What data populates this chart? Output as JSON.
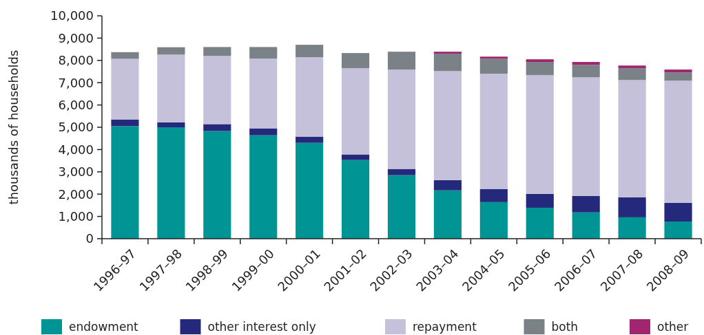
{
  "chart_data": {
    "type": "bar",
    "stacked": true,
    "ylabel": "thousands of households",
    "categories": [
      "1996–97",
      "1997–98",
      "1998–99",
      "1999–00",
      "2000–01",
      "2001–02",
      "2002–03",
      "2003–04",
      "2004–05",
      "2005–06",
      "2006–07",
      "2007–08",
      "2008–09"
    ],
    "series": [
      {
        "name": "endowment",
        "color": "#009494",
        "values": [
          5050,
          5000,
          4830,
          4640,
          4300,
          3530,
          2850,
          2170,
          1640,
          1390,
          1180,
          960,
          770
        ]
      },
      {
        "name": "other interest only",
        "color": "#25297b",
        "values": [
          300,
          220,
          310,
          310,
          280,
          250,
          280,
          460,
          590,
          620,
          740,
          900,
          840
        ]
      },
      {
        "name": "repayment",
        "color": "#c5c1da",
        "values": [
          2720,
          3040,
          3060,
          3130,
          3560,
          3870,
          4460,
          4890,
          5170,
          5330,
          5320,
          5260,
          5480
        ]
      },
      {
        "name": "both",
        "color": "#7a8187",
        "values": [
          300,
          330,
          400,
          520,
          560,
          680,
          800,
          780,
          680,
          590,
          560,
          530,
          370
        ]
      },
      {
        "name": "other",
        "color": "#a0276f",
        "values": [
          null,
          null,
          null,
          null,
          null,
          null,
          null,
          90,
          90,
          120,
          130,
          120,
          130
        ]
      }
    ],
    "ylim": [
      0,
      10000
    ],
    "yticks": [
      {
        "value": 0,
        "label": "0"
      },
      {
        "value": 1000,
        "label": "1,000"
      },
      {
        "value": 2000,
        "label": "2,000"
      },
      {
        "value": 3000,
        "label": "3,000"
      },
      {
        "value": 4000,
        "label": "4,000"
      },
      {
        "value": 5000,
        "label": "5,000"
      },
      {
        "value": 6000,
        "label": "6,000"
      },
      {
        "value": 7000,
        "label": "7,000"
      },
      {
        "value": 8000,
        "label": "8,000"
      },
      {
        "value": 9000,
        "label": "9,000"
      },
      {
        "value": 10000,
        "label": "10,000"
      }
    ],
    "grid": false,
    "legend": "bottom"
  }
}
